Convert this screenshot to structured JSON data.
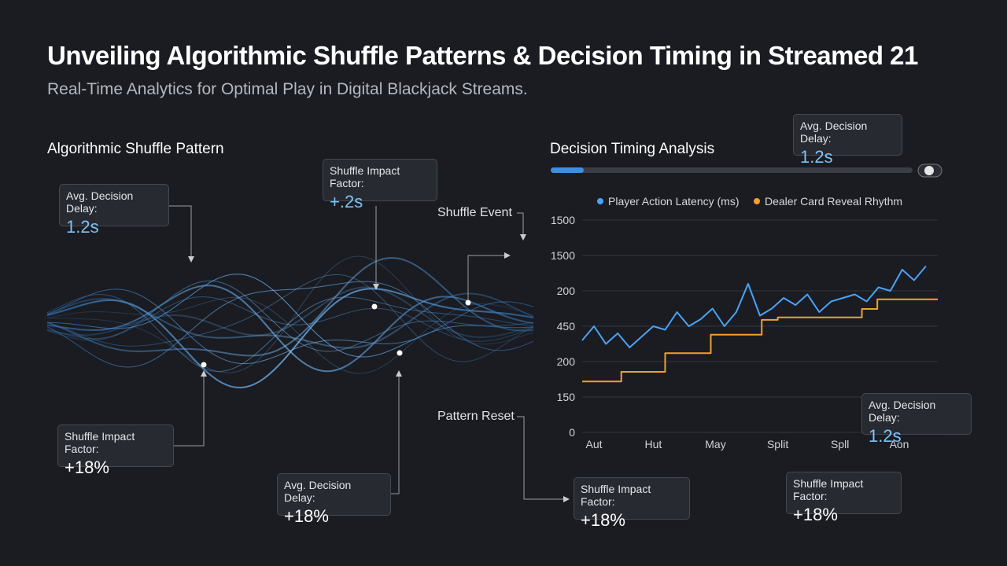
{
  "header": {
    "title": "Unveiling Algorithmic Shuffle Patterns & Decision Timing in Streamed 21",
    "subtitle": "Real-Time Analytics for Optimal Play in Digital Blackjack Streams."
  },
  "left_panel": {
    "title": "Algorithmic Shuffle Pattern",
    "labels": [
      "Shuffle Event",
      "Pattern Reset"
    ]
  },
  "callouts": [
    {
      "title": "Avg. Decision Delay:",
      "value": "1.2s"
    },
    {
      "title": "Shuffle Impact Factor:",
      "value": "+.2s"
    },
    {
      "title": "Avg. Decision Delay:",
      "value": "1.2s"
    },
    {
      "title": "Shuffle Impact Factor:",
      "value": "+18%"
    },
    {
      "title": "Avg. Decision Delay:",
      "value": "+18%"
    },
    {
      "title": "Shuffle Impact Factor:",
      "value": "+18%"
    },
    {
      "title": "Avg. Decision Delay:",
      "value": "1.2s"
    },
    {
      "title": "Shuffle Impact Factor:",
      "value": "+18%"
    }
  ],
  "chart_data": {
    "type": "line",
    "title": "Decision Timing Analysis",
    "xlim": [
      0,
      6
    ],
    "xticks": [
      {
        "value": 0.2,
        "label": "Aut"
      },
      {
        "value": 1.2,
        "label": "Hut"
      },
      {
        "value": 2.25,
        "label": "May"
      },
      {
        "value": 3.3,
        "label": "Split"
      },
      {
        "value": 4.35,
        "label": "Spll"
      },
      {
        "value": 5.35,
        "label": "Aon"
      }
    ],
    "ylim": [
      0,
      6
    ],
    "yticks": [
      {
        "value": 0,
        "label": "0"
      },
      {
        "value": 1,
        "label": "150"
      },
      {
        "value": 2,
        "label": "200"
      },
      {
        "value": 3,
        "label": "450"
      },
      {
        "value": 4,
        "label": "200"
      },
      {
        "value": 5,
        "label": "1500"
      },
      {
        "value": 6,
        "label": "1500"
      }
    ],
    "grid": true,
    "series": [
      {
        "name": "Player Action Latency (ms)",
        "color": "#4aa3f5",
        "x": [
          0,
          0.2,
          0.4,
          0.6,
          0.8,
          1,
          1.2,
          1.4,
          1.6,
          1.8,
          2,
          2.2,
          2.4,
          2.6,
          2.8,
          3,
          3.2,
          3.4,
          3.6,
          3.8,
          4,
          4.2,
          4.4,
          4.6,
          4.8,
          5,
          5.2,
          5.4,
          5.6,
          5.8
        ],
        "values": [
          2.6,
          3,
          2.5,
          2.8,
          2.4,
          2.7,
          3,
          2.9,
          3.4,
          3,
          3.2,
          3.5,
          3,
          3.4,
          4.2,
          3.3,
          3.5,
          3.8,
          3.6,
          3.9,
          3.4,
          3.7,
          3.8,
          3.9,
          3.7,
          4.1,
          4,
          4.6,
          4.3,
          4.7
        ]
      },
      {
        "name": "Dealer Card Reveal Rhythm",
        "color": "#f0a030",
        "step": true,
        "x": [
          0,
          0.66,
          1.4,
          2.17,
          3.03,
          3.3,
          4.72,
          4.98
        ],
        "values": [
          1.44,
          1.71,
          2.24,
          2.76,
          3.18,
          3.25,
          3.49,
          3.76
        ]
      }
    ]
  }
}
